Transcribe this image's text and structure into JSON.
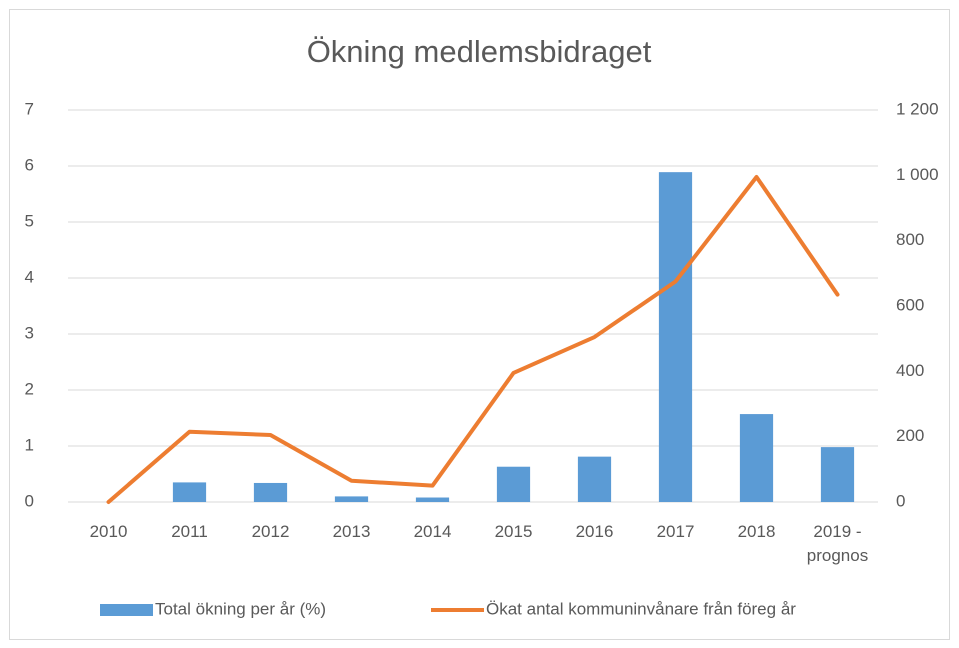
{
  "chart_data": {
    "type": "bar-line",
    "title": "Ökning medlemsbidraget",
    "categories": [
      "2010",
      "2011",
      "2012",
      "2013",
      "2014",
      "2015",
      "2016",
      "2017",
      "2018",
      "2019 - prognos"
    ],
    "series": [
      {
        "name": "Total ökning per år (%)",
        "color": "#5b9bd5",
        "type": "bar",
        "values": [
          0,
          0.35,
          0.34,
          0.1,
          0.08,
          0.63,
          0.81,
          5.89,
          1.57,
          0.98
        ]
      },
      {
        "name": "Ökat antal kommuninvånare från föreg år",
        "color": "#ed7d31",
        "type": "line",
        "axis": "y2",
        "values": [
          0,
          215,
          205,
          65,
          50,
          395,
          505,
          675,
          995,
          635
        ]
      }
    ],
    "ylim": [
      0,
      7
    ],
    "yticks": [
      0,
      1,
      2,
      3,
      4,
      5,
      6,
      7
    ],
    "y2lim": [
      0,
      1200
    ],
    "y2ticks": [
      0,
      200,
      400,
      600,
      800,
      {
        "value": 1000,
        "label": "1 000"
      },
      {
        "value": 1200,
        "label": "1 200"
      }
    ],
    "grid": true,
    "legend": "bottom"
  }
}
